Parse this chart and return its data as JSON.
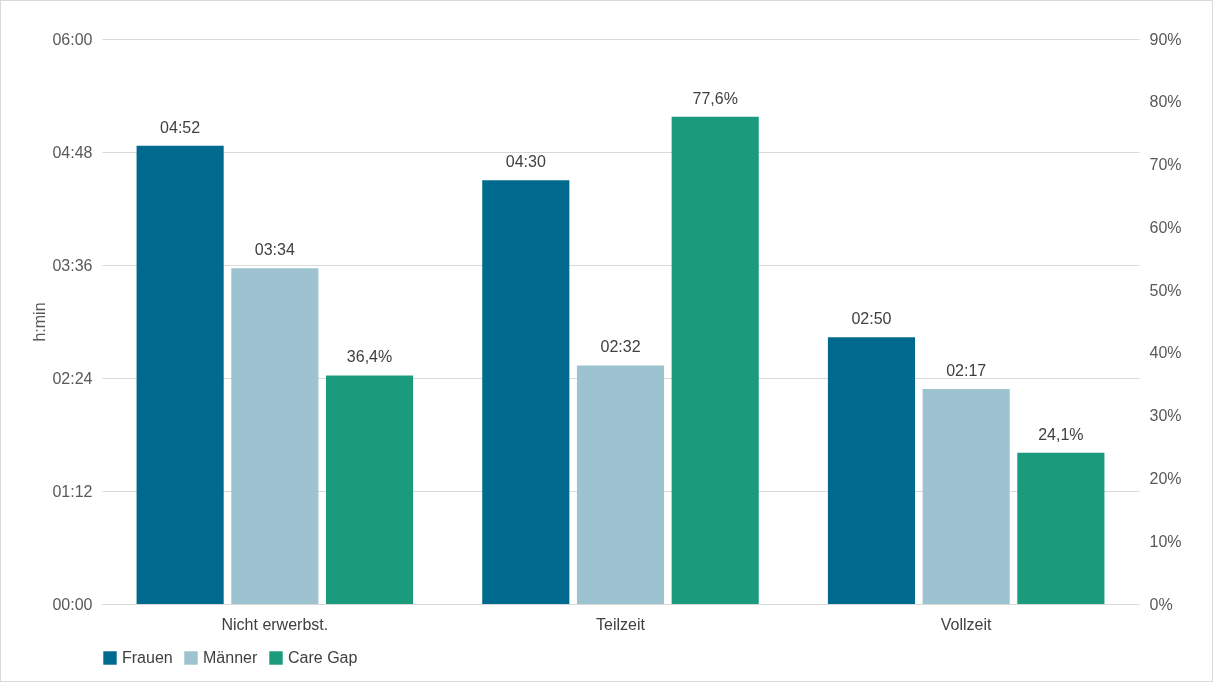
{
  "chart_data": {
    "type": "bar",
    "ylabel": "h:min",
    "categories": [
      "Nicht erwerbst.",
      "Teilzeit",
      "Vollzeit"
    ],
    "series": [
      {
        "name": "Frauen",
        "color": "#006a8e",
        "values": [
          4.8667,
          4.5,
          2.8333
        ],
        "value_labels": [
          "04:52",
          "04:30",
          "02:50"
        ]
      },
      {
        "name": "Männer",
        "color": "#9dc3d0",
        "values": [
          3.5667,
          2.5333,
          2.2833
        ],
        "value_labels": [
          "03:34",
          "02:32",
          "02:17"
        ]
      },
      {
        "name": "Care Gap",
        "color": "#1a9b7b",
        "axis": "y2",
        "values": [
          36.4,
          77.6,
          24.1
        ],
        "value_labels": [
          "36,4%",
          "77,6%",
          "24,1%"
        ]
      }
    ],
    "ylim": [
      0,
      6
    ],
    "yticks": [
      {
        "value": 0,
        "label": "00:00"
      },
      {
        "value": 1.2,
        "label": "01:12"
      },
      {
        "value": 2.4,
        "label": "02:24"
      },
      {
        "value": 3.6,
        "label": "03:36"
      },
      {
        "value": 4.8,
        "label": "04:48"
      },
      {
        "value": 6,
        "label": "06:00"
      }
    ],
    "y2lim": [
      0,
      90
    ],
    "y2ticks": [
      {
        "value": 0,
        "label": "0%"
      },
      {
        "value": 10,
        "label": "10%"
      },
      {
        "value": 20,
        "label": "20%"
      },
      {
        "value": 30,
        "label": "30%"
      },
      {
        "value": 40,
        "label": "40%"
      },
      {
        "value": 50,
        "label": "50%"
      },
      {
        "value": 60,
        "label": "60%"
      },
      {
        "value": 70,
        "label": "70%"
      },
      {
        "value": 80,
        "label": "80%"
      },
      {
        "value": 90,
        "label": "90%"
      }
    ],
    "grid": "y",
    "legend": "bottom"
  }
}
